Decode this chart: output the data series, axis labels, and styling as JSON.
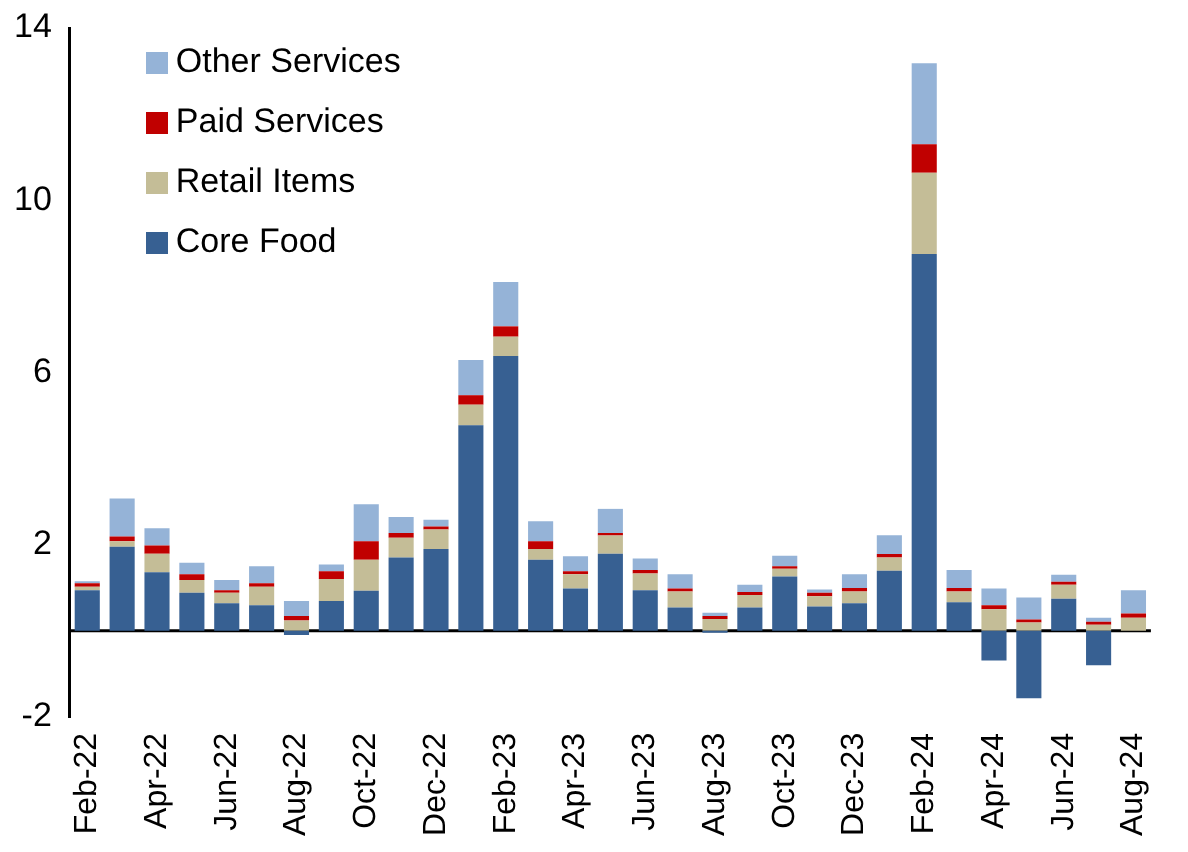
{
  "chart_data": {
    "type": "bar",
    "stacked": true,
    "legend": "top left",
    "grid": false,
    "categories": [
      "Feb-22",
      null,
      "Apr-22",
      null,
      "Jun-22",
      null,
      "Aug-22",
      null,
      "Oct-22",
      null,
      "Dec-22",
      null,
      "Feb-23",
      null,
      "Apr-23",
      null,
      "Jun-23",
      null,
      "Aug-23",
      null,
      "Oct-23",
      null,
      "Dec-23",
      null,
      "Feb-24",
      null,
      "Apr-24",
      null,
      "Jun-24",
      null,
      "Aug-24"
    ],
    "ylim": [
      -2,
      14
    ],
    "yticks": [
      -2,
      2,
      6,
      10,
      14
    ],
    "series": [
      {
        "name": "Core Food",
        "color": "#376092",
        "values": [
          0.94,
          1.95,
          1.36,
          0.88,
          0.64,
          0.59,
          -0.1,
          0.69,
          0.93,
          1.7,
          1.9,
          4.77,
          6.38,
          1.65,
          0.98,
          1.79,
          0.94,
          0.54,
          -0.05,
          0.54,
          1.26,
          0.56,
          0.64,
          1.39,
          8.75,
          0.66,
          -0.69,
          -1.57,
          0.74,
          -0.8,
          0
        ]
      },
      {
        "name": "Retail Items",
        "color": "#c4bd97",
        "values": [
          0.08,
          0.13,
          0.43,
          0.3,
          0.24,
          0.43,
          0.24,
          0.51,
          0.72,
          0.46,
          0.45,
          0.48,
          0.45,
          0.25,
          0.33,
          0.42,
          0.39,
          0.37,
          0.27,
          0.29,
          0.18,
          0.24,
          0.27,
          0.31,
          1.89,
          0.25,
          0.5,
          0.19,
          0.33,
          0.14,
          0.3
        ]
      },
      {
        "name": "Paid Services",
        "color": "#c00000",
        "values": [
          0.08,
          0.11,
          0.19,
          0.13,
          0.06,
          0.08,
          0.1,
          0.18,
          0.43,
          0.11,
          0.07,
          0.22,
          0.24,
          0.18,
          0.07,
          0.06,
          0.08,
          0.07,
          0.07,
          0.07,
          0.06,
          0.08,
          0.08,
          0.08,
          0.66,
          0.08,
          0.09,
          0.07,
          0.07,
          0.07,
          0.1
        ]
      },
      {
        "name": "Other Services",
        "color": "#95b3d7",
        "values": [
          0.05,
          0.88,
          0.4,
          0.27,
          0.24,
          0.4,
          0.35,
          0.16,
          0.86,
          0.37,
          0.16,
          0.82,
          1.03,
          0.46,
          0.35,
          0.56,
          0.27,
          0.33,
          0.08,
          0.17,
          0.24,
          0.08,
          0.32,
          0.44,
          1.88,
          0.42,
          0.39,
          0.51,
          0.16,
          0.09,
          0.54
        ]
      }
    ]
  }
}
